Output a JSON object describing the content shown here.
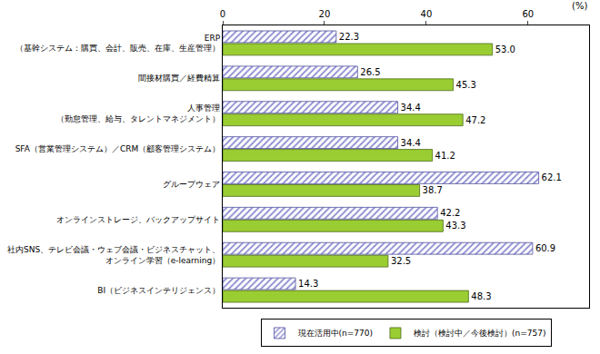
{
  "chart_data": {
    "type": "bar",
    "orientation": "horizontal",
    "xlabel": "(%)",
    "categories": [
      "ERP\n（基幹システム：購買、会計、販売、在庫、生産管理）",
      "間接材購買／経費精算",
      "人事管理\n（勤怠管理、給与、タレントマネジメント）",
      "SFA（営業管理システム）／CRM（顧客管理システム）",
      "グループウェア",
      "オンラインストレージ、バックアップサイト",
      "社内SNS、テレビ会議・ウェブ会議・ビジネスチャット、\nオンライン学習（e-learning）",
      "BI（ビジネスインテリジェンス）"
    ],
    "series": [
      {
        "name": "現在活用中(n=770)",
        "color": "#8c8cd0",
        "marker": "hatched",
        "values": [
          22.3,
          26.5,
          34.4,
          34.4,
          62.1,
          42.2,
          60.9,
          14.3
        ],
        "value_labels": [
          "22.3",
          "26.5",
          "34.4",
          "34.4",
          "62.1",
          "42.2",
          "60.9",
          "14.3"
        ]
      },
      {
        "name": "検討（検討中／今後検討）(n=757)",
        "color": "#9acd32",
        "marker": "solid",
        "values": [
          53.0,
          45.3,
          47.2,
          41.2,
          38.7,
          43.3,
          32.5,
          48.3
        ],
        "value_labels": [
          "53.0",
          "45.3",
          "47.2",
          "41.2",
          "38.7",
          "43.3",
          "32.5",
          "48.3"
        ]
      }
    ],
    "xlim": [
      0,
      72
    ],
    "xticks": [
      0,
      20,
      40,
      60
    ],
    "grid": false,
    "data_labels": true,
    "legend": "bottom"
  }
}
